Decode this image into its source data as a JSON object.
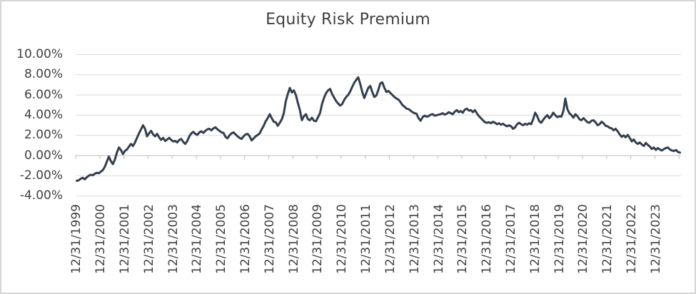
{
  "chart_data": {
    "type": "line",
    "title": "Equity Risk Premium",
    "legend": "none",
    "grid": "horizontal",
    "x_axis": {
      "start": "12/31/1999",
      "frequency": "monthly",
      "points_per_tick": 12,
      "tick_label_rotation_degrees": 90,
      "tick_labels": [
        "12/31/1999",
        "12/31/2000",
        "12/31/2001",
        "12/31/2002",
        "12/31/2003",
        "12/31/2004",
        "12/31/2005",
        "12/31/2006",
        "12/31/2007",
        "12/31/2008",
        "12/31/2009",
        "12/31/2010",
        "12/31/2011",
        "12/31/2012",
        "12/31/2013",
        "12/31/2014",
        "12/31/2015",
        "12/31/2016",
        "12/31/2017",
        "12/31/2018",
        "12/31/2019",
        "12/31/2020",
        "12/31/2021",
        "12/31/2022",
        "12/31/2023"
      ]
    },
    "y_axis": {
      "unit": "percent",
      "min": -4,
      "max": 10,
      "tick_labels": [
        "10.00%",
        "8.00%",
        "6.00%",
        "4.00%",
        "2.00%",
        "0.00%",
        "-2.00%",
        "-4.00%"
      ],
      "tick_values": [
        10,
        8,
        6,
        4,
        2,
        0,
        -2,
        -4
      ],
      "axis_crosses_at": 0
    },
    "series": [
      {
        "name": "Equity Risk Premium",
        "color": "#333f4e",
        "values_percent": [
          -2.5,
          -2.45,
          -2.3,
          -2.2,
          -2.35,
          -2.15,
          -2.0,
          -1.9,
          -1.95,
          -1.8,
          -1.7,
          -1.75,
          -1.6,
          -1.45,
          -1.1,
          -0.6,
          -0.1,
          -0.55,
          -0.85,
          -0.4,
          0.3,
          0.8,
          0.55,
          0.15,
          0.45,
          0.6,
          0.9,
          1.15,
          0.95,
          1.3,
          1.75,
          2.2,
          2.6,
          3.0,
          2.65,
          1.9,
          2.2,
          2.45,
          2.1,
          1.9,
          2.15,
          1.8,
          1.55,
          1.75,
          1.45,
          1.6,
          1.75,
          1.55,
          1.4,
          1.45,
          1.3,
          1.55,
          1.65,
          1.35,
          1.15,
          1.45,
          1.9,
          2.2,
          2.35,
          2.15,
          2.05,
          2.3,
          2.4,
          2.25,
          2.45,
          2.6,
          2.65,
          2.5,
          2.7,
          2.8,
          2.6,
          2.45,
          2.3,
          2.25,
          1.85,
          1.7,
          2.0,
          2.2,
          2.3,
          2.1,
          1.9,
          1.75,
          1.65,
          1.9,
          2.1,
          2.15,
          1.9,
          1.5,
          1.7,
          1.9,
          2.05,
          2.2,
          2.6,
          2.95,
          3.4,
          3.7,
          4.1,
          3.7,
          3.35,
          3.3,
          2.95,
          3.25,
          3.6,
          4.2,
          5.4,
          6.1,
          6.7,
          6.25,
          6.45,
          6.0,
          5.2,
          4.5,
          3.5,
          3.9,
          4.1,
          3.6,
          3.5,
          3.75,
          3.45,
          3.4,
          3.8,
          4.2,
          5.1,
          5.7,
          6.2,
          6.45,
          6.6,
          6.1,
          5.75,
          5.4,
          5.15,
          4.95,
          5.1,
          5.5,
          5.8,
          6.0,
          6.35,
          6.8,
          7.2,
          7.5,
          7.75,
          7.1,
          6.3,
          5.7,
          6.2,
          6.7,
          6.9,
          6.3,
          5.8,
          5.95,
          6.5,
          7.15,
          7.25,
          6.7,
          6.3,
          6.4,
          6.2,
          6.0,
          5.8,
          5.65,
          5.55,
          5.3,
          5.0,
          4.85,
          4.65,
          4.6,
          4.45,
          4.3,
          4.2,
          4.15,
          3.7,
          3.45,
          3.8,
          3.95,
          3.85,
          3.9,
          4.05,
          4.1,
          3.95,
          4.0,
          4.05,
          4.1,
          4.2,
          4.05,
          4.15,
          4.3,
          4.2,
          4.1,
          4.35,
          4.5,
          4.3,
          4.4,
          4.25,
          4.55,
          4.65,
          4.45,
          4.5,
          4.3,
          4.5,
          4.2,
          3.9,
          3.7,
          3.5,
          3.3,
          3.25,
          3.3,
          3.2,
          3.35,
          3.25,
          3.1,
          3.2,
          3.05,
          3.15,
          3.0,
          2.9,
          3.0,
          2.9,
          2.65,
          2.8,
          3.1,
          3.25,
          3.1,
          3.0,
          3.15,
          3.05,
          3.2,
          3.1,
          3.6,
          4.25,
          3.9,
          3.4,
          3.25,
          3.55,
          3.8,
          4.0,
          3.7,
          3.9,
          4.25,
          4.0,
          3.8,
          3.9,
          3.85,
          4.4,
          5.65,
          4.6,
          4.2,
          4.0,
          3.75,
          4.1,
          3.9,
          3.6,
          3.5,
          3.7,
          3.5,
          3.3,
          3.25,
          3.45,
          3.5,
          3.3,
          3.0,
          3.1,
          3.35,
          3.2,
          2.95,
          2.9,
          2.75,
          2.7,
          2.5,
          2.65,
          2.4,
          2.1,
          1.85,
          2.0,
          1.8,
          2.05,
          1.75,
          1.4,
          1.6,
          1.3,
          1.15,
          1.3,
          1.1,
          0.95,
          1.25,
          1.05,
          0.9,
          0.65,
          0.8,
          0.55,
          0.75,
          0.6,
          0.5,
          0.65,
          0.75,
          0.8,
          0.6,
          0.5,
          0.45,
          0.55,
          0.35,
          0.3
        ]
      }
    ]
  },
  "colors": {
    "background": "#ffffff",
    "border": "#d6d6d6",
    "gridline": "#d9d9d9",
    "axis": "#bfbfbf",
    "text": "#404040",
    "line": "#333f4e"
  }
}
